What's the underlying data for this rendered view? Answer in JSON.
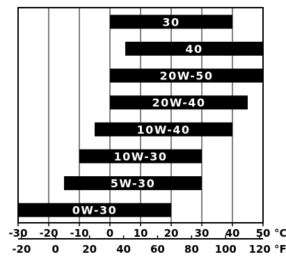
{
  "chart_data": {
    "type": "bar",
    "orientation": "horizontal-range",
    "title": "",
    "categories": [
      "30",
      "40",
      "20W-50",
      "20W-40",
      "10W-40",
      "10W-30",
      "5W-30",
      "0W-30"
    ],
    "ranges_c": [
      [
        0,
        40
      ],
      [
        5,
        50
      ],
      [
        0,
        50
      ],
      [
        0,
        45
      ],
      [
        -5,
        40
      ],
      [
        -10,
        30
      ],
      [
        -15,
        30
      ],
      [
        -30,
        20
      ]
    ],
    "xlim_c": [
      -30,
      50
    ],
    "celsius_ticks": [
      -30,
      -20,
      -10,
      0,
      10,
      20,
      30,
      40,
      50
    ],
    "celsius_tick_labels": [
      "-30",
      "-20",
      "-10",
      "0",
      "10",
      "20",
      "30",
      "40",
      "50"
    ],
    "fahrenheit_ticks": [
      -20,
      0,
      20,
      40,
      60,
      80,
      100,
      120
    ],
    "fahrenheit_tick_labels": [
      "-20",
      "0",
      "20",
      "40",
      "60",
      "80",
      "100",
      "120"
    ],
    "celsius_unit": "°C",
    "fahrenheit_unit": "°F",
    "grid": true,
    "bar_color": "#000000",
    "label_color": "#ffffff"
  }
}
